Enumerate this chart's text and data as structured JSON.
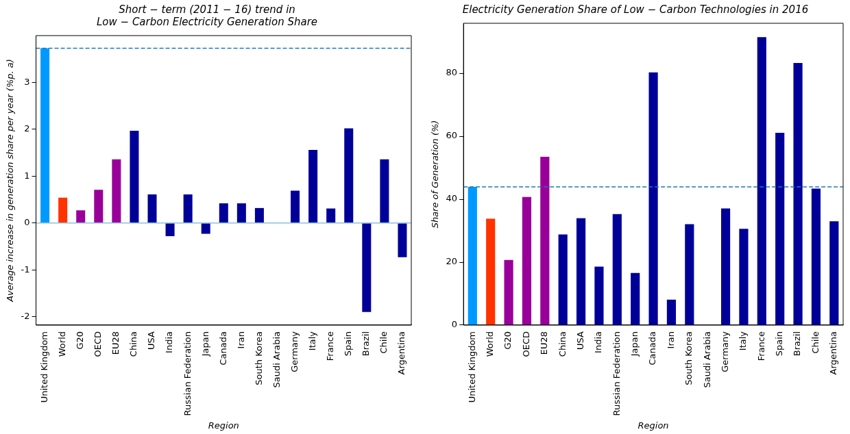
{
  "chart_data": [
    {
      "type": "bar",
      "title": "Short − term (2011 − 16) trend in\nLow − Carbon Electricity Generation Share",
      "xlabel": "Region",
      "ylabel": "Average increase in generation share per year (%p. a)",
      "categories": [
        "United Kingdom",
        "World",
        "G20",
        "OECD",
        "EU28",
        "China",
        "USA",
        "India",
        "Russian Federation",
        "Japan",
        "Canada",
        "Iran",
        "South Korea",
        "Saudi Arabia",
        "Germany",
        "Italy",
        "France",
        "Spain",
        "Brazil",
        "Chile",
        "Argentina"
      ],
      "values": [
        3.73,
        0.54,
        0.27,
        0.71,
        1.36,
        1.97,
        0.61,
        -0.28,
        0.61,
        -0.23,
        0.42,
        0.42,
        0.32,
        0,
        0.69,
        1.56,
        0.31,
        2.02,
        -1.9,
        1.36,
        -0.73
      ],
      "colors": [
        "#0099ff",
        "#ff3300",
        "#990099",
        "#990099",
        "#990099",
        "#000099",
        "#000099",
        "#000099",
        "#000099",
        "#000099",
        "#000099",
        "#000099",
        "#000099",
        "#000099",
        "#000099",
        "#000099",
        "#000099",
        "#000099",
        "#000099",
        "#000099",
        "#000099"
      ],
      "ylim": [
        -2.18,
        4.0
      ],
      "yticks": [
        -2,
        -1,
        0,
        1,
        2,
        3
      ],
      "grid": false,
      "legend": false,
      "ref_lines": [
        {
          "axis": "y",
          "value": 3.73,
          "color": "#1f77b4",
          "line_style": "dashed"
        },
        {
          "axis": "y",
          "value": 0,
          "color": "#8fbfdf",
          "line_style": "solid"
        }
      ]
    },
    {
      "type": "bar",
      "title": "Electricity Generation Share of Low − Carbon Technologies in 2016",
      "xlabel": "Region",
      "ylabel": "Share of Generation (%)",
      "categories": [
        "United Kingdom",
        "World",
        "G20",
        "OECD",
        "EU28",
        "China",
        "USA",
        "India",
        "Russian Federation",
        "Japan",
        "Canada",
        "Iran",
        "South Korea",
        "Saudi Arabia",
        "Germany",
        "Italy",
        "France",
        "Spain",
        "Brazil",
        "Chile",
        "Argentina"
      ],
      "values": [
        43.9,
        33.8,
        20.7,
        40.7,
        53.5,
        28.8,
        34.0,
        18.6,
        35.3,
        16.6,
        80.3,
        8.1,
        32.1,
        0,
        37.1,
        30.6,
        91.5,
        61.1,
        83.3,
        43.4,
        33.0
      ],
      "colors": [
        "#0099ff",
        "#ff3300",
        "#990099",
        "#990099",
        "#990099",
        "#000099",
        "#000099",
        "#000099",
        "#000099",
        "#000099",
        "#000099",
        "#000099",
        "#000099",
        "#000099",
        "#000099",
        "#000099",
        "#000099",
        "#000099",
        "#000099",
        "#000099",
        "#000099"
      ],
      "ylim": [
        0,
        95.9
      ],
      "yticks": [
        0,
        20,
        40,
        60,
        80
      ],
      "grid": false,
      "legend": false,
      "ref_lines": [
        {
          "axis": "y",
          "value": 43.9,
          "color": "#1f77b4",
          "line_style": "dashed"
        }
      ]
    }
  ]
}
